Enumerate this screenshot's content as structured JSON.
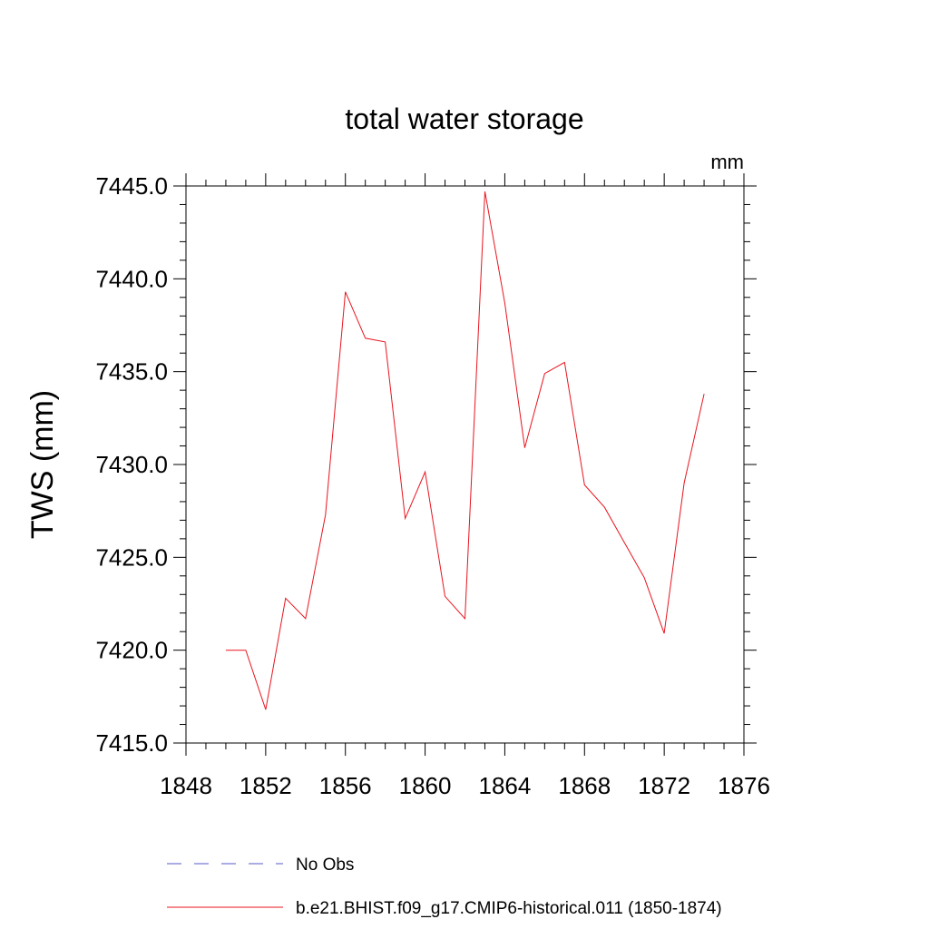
{
  "chart_data": {
    "type": "line",
    "title": "total water storage",
    "units_label": "mm",
    "ylabel": "TWS  (mm)",
    "xlabel": "",
    "xlim": [
      1848,
      1876
    ],
    "ylim": [
      7415.0,
      7445.0
    ],
    "x_ticks": [
      1848,
      1852,
      1856,
      1860,
      1864,
      1868,
      1872,
      1876
    ],
    "x_tick_labels": [
      "1848",
      "1852",
      "1856",
      "1860",
      "1864",
      "1868",
      "1872",
      "1876"
    ],
    "y_ticks": [
      7415.0,
      7420.0,
      7425.0,
      7430.0,
      7435.0,
      7440.0,
      7445.0
    ],
    "y_tick_labels": [
      "7415.0",
      "7420.0",
      "7425.0",
      "7430.0",
      "7435.0",
      "7440.0",
      "7445.0"
    ],
    "grid": false,
    "legend_position": "bottom",
    "series": [
      {
        "name": "No Obs",
        "color": "#5a5ac8",
        "dash": "dashed",
        "x": [],
        "y": []
      },
      {
        "name": "b.e21.BHIST.f09_g17.CMIP6-historical.011 (1850-1874)",
        "color": "#e8141e",
        "dash": "solid",
        "x": [
          1850,
          1851,
          1852,
          1853,
          1854,
          1855,
          1856,
          1857,
          1858,
          1859,
          1860,
          1861,
          1862,
          1863,
          1864,
          1865,
          1866,
          1867,
          1868,
          1869,
          1870,
          1871,
          1872,
          1873,
          1874
        ],
        "y": [
          7420.0,
          7420.0,
          7416.8,
          7422.8,
          7421.7,
          7427.3,
          7439.3,
          7436.8,
          7436.6,
          7427.1,
          7429.6,
          7422.9,
          7421.7,
          7444.7,
          7438.7,
          7430.9,
          7434.9,
          7435.5,
          7428.9,
          7427.7,
          7425.8,
          7423.9,
          7420.9,
          7429.0,
          7433.8
        ]
      }
    ]
  }
}
